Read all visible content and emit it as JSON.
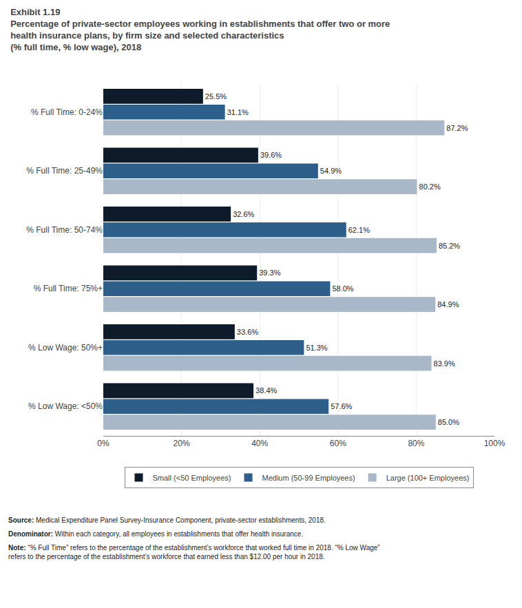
{
  "chart_data": {
    "type": "bar",
    "orientation": "horizontal",
    "title": "Exhibit 1.19",
    "subtitle": "Percentage of private-sector employees working in establishments that offer two or more\nhealth insurance plans, by firm size and selected characteristics\n(% full time, % low wage), 2018",
    "categories": [
      "% Full Time: 0-24%",
      "% Full Time: 25-49%",
      "% Full Time: 50-74%",
      "% Full Time: 75%+",
      "% Low Wage: 50%+",
      "% Low Wage: <50%"
    ],
    "series": [
      {
        "name": "Small (<50 Employees)",
        "color": "#0d1b2a",
        "values": [
          25.5,
          39.6,
          32.6,
          39.3,
          33.6,
          38.4
        ],
        "value_labels": [
          "25.5%",
          "39.6%",
          "32.6%",
          "39.3%",
          "33.6%",
          "38.4%"
        ]
      },
      {
        "name": "Medium (50-99 Employees)",
        "color": "#2e5f8a",
        "values": [
          31.1,
          54.9,
          62.1,
          58.0,
          51.3,
          57.6
        ],
        "value_labels": [
          "31.1%",
          "54.9%",
          "62.1%",
          "58.0%",
          "51.3%",
          "57.6%"
        ]
      },
      {
        "name": "Large (100+ Employees)",
        "color": "#a8b8c8",
        "values": [
          87.2,
          80.2,
          85.2,
          84.9,
          83.9,
          85.0
        ],
        "value_labels": [
          "87.2%",
          "80.2%",
          "85.2%",
          "84.9%",
          "83.9%",
          "85.0%"
        ]
      }
    ],
    "xlim": [
      0,
      100
    ],
    "xticks": [
      {
        "value": 0,
        "label": "0%"
      },
      {
        "value": 20,
        "label": "20%"
      },
      {
        "value": 40,
        "label": "40%"
      },
      {
        "value": 60,
        "label": "60%"
      },
      {
        "value": 80,
        "label": "80%"
      },
      {
        "value": 100,
        "label": "100%"
      }
    ],
    "grid": true,
    "legend": "bottom",
    "data_labels": true,
    "annotations": [
      {
        "label": "Source:",
        "text": " Medical Expenditure Panel Survey-Insurance Component, private-sector establishments, 2018."
      },
      {
        "label": "Denominator:",
        "text": " Within each category, all employees in establishments that offer health insurance."
      },
      {
        "label": "Note:",
        "text": " “% Full Time” refers to the percentage of the establishment’s workforce that worked full time in 2018. “% Low Wage”\nrefers to the percentage of the establishment’s workforce that earned less than $12.00 per hour in 2018."
      }
    ]
  }
}
